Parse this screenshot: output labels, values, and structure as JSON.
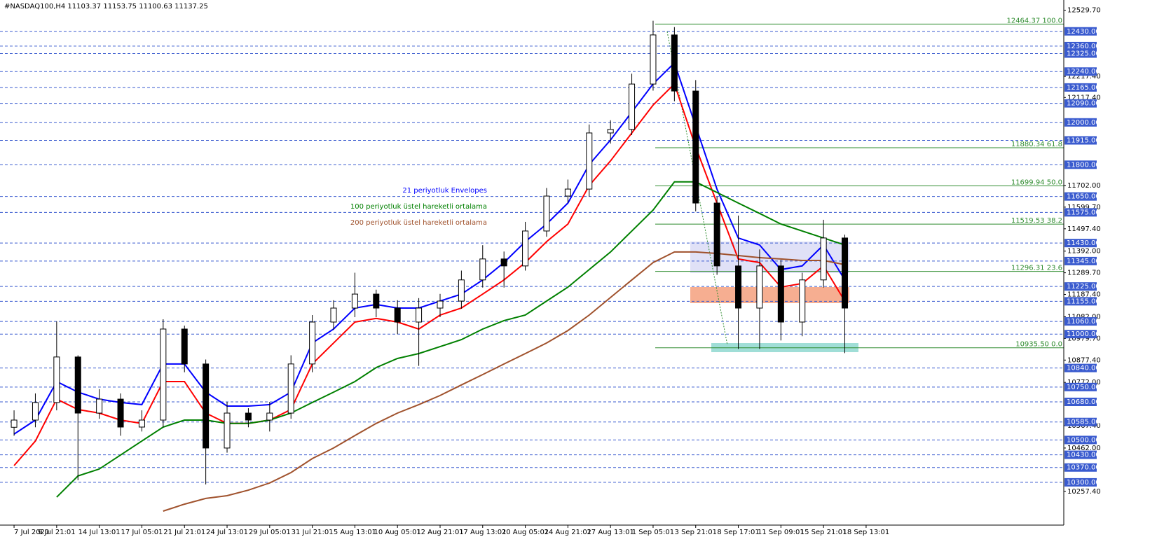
{
  "chart_data": {
    "type": "candlestick",
    "title": "#NASDAQ100,H4  11103.37 11153.75 11100.63 11137.25",
    "xlim": [
      -0.33,
      24.64
    ],
    "ylim": [
      10098,
      12578
    ],
    "xticks": [
      {
        "value": 0,
        "label": "7 Jul 2020"
      },
      {
        "value": 1,
        "label": "9 Jul 21:01"
      },
      {
        "value": 2,
        "label": "14 Jul 13:01"
      },
      {
        "value": 3,
        "label": "17 Jul 05:01"
      },
      {
        "value": 4,
        "label": "21 Jul 21:01"
      },
      {
        "value": 5,
        "label": "24 Jul 13:01"
      },
      {
        "value": 6,
        "label": "29 Jul 05:01"
      },
      {
        "value": 7,
        "label": "31 Jul 21:01"
      },
      {
        "value": 8,
        "label": "5 Aug 13:01"
      },
      {
        "value": 9,
        "label": "10 Aug 05:01"
      },
      {
        "value": 10,
        "label": "12 Aug 21:01"
      },
      {
        "value": 11,
        "label": "17 Aug 13:01"
      },
      {
        "value": 12,
        "label": "20 Aug 05:01"
      },
      {
        "value": 13,
        "label": "24 Aug 21:01"
      },
      {
        "value": 14,
        "label": "27 Aug 13:01"
      },
      {
        "value": 15,
        "label": "1 Sep 05:01"
      },
      {
        "value": 16,
        "label": "3 Sep 21:01"
      },
      {
        "value": 17,
        "label": "8 Sep 17:01"
      },
      {
        "value": 18,
        "label": "11 Sep 09:01"
      },
      {
        "value": 19,
        "label": "15 Sep 21:01"
      },
      {
        "value": 20,
        "label": "18 Sep 13:01"
      }
    ],
    "yticks": [
      {
        "value": 12529.7,
        "label": "12529.70"
      },
      {
        "value": 12217.4,
        "label": "12217.40"
      },
      {
        "value": 12117.4,
        "label": "12117.40"
      },
      {
        "value": 11702,
        "label": "11702.00"
      },
      {
        "value": 11599.7,
        "label": "11599.70"
      },
      {
        "value": 11497.4,
        "label": "11497.40"
      },
      {
        "value": 11392,
        "label": "11392.00"
      },
      {
        "value": 11289.7,
        "label": "11289.70"
      },
      {
        "value": 11187.4,
        "label": "11187.40"
      },
      {
        "value": 11082,
        "label": "11082.00"
      },
      {
        "value": 10979.7,
        "label": "10979.70"
      },
      {
        "value": 10877.4,
        "label": "10877.40"
      },
      {
        "value": 10772,
        "label": "10772.00"
      },
      {
        "value": 10567.4,
        "label": "10567.40"
      },
      {
        "value": 10462,
        "label": "10462.00"
      },
      {
        "value": 10257.4,
        "label": "10257.40"
      }
    ],
    "levels_color": "#3a5bcf",
    "levels": [
      {
        "value": 12430,
        "label": "12430.00"
      },
      {
        "value": 12360,
        "label": "12360.00"
      },
      {
        "value": 12325,
        "label": "12325.00"
      },
      {
        "value": 12240,
        "label": "12240.00"
      },
      {
        "value": 12165,
        "label": "12165.00"
      },
      {
        "value": 12090,
        "label": "12090.00"
      },
      {
        "value": 12000,
        "label": "12000.00"
      },
      {
        "value": 11915,
        "label": "11915.00"
      },
      {
        "value": 11800,
        "label": "11800.00"
      },
      {
        "value": 11650,
        "label": "11650.00"
      },
      {
        "value": 11575,
        "label": "11575.00"
      },
      {
        "value": 11430,
        "label": "11430.00"
      },
      {
        "value": 11345,
        "label": "11345.00"
      },
      {
        "value": 11225,
        "label": "11225.00"
      },
      {
        "value": 11155,
        "label": "11155.00"
      },
      {
        "value": 11060,
        "label": "11060.00"
      },
      {
        "value": 11000,
        "label": "11000.00"
      },
      {
        "value": 10840,
        "label": "10840.00"
      },
      {
        "value": 10750,
        "label": "10750.00"
      },
      {
        "value": 10680,
        "label": "10680.00"
      },
      {
        "value": 10585,
        "label": "10585.00"
      },
      {
        "value": 10500,
        "label": "10500.00"
      },
      {
        "value": 10430,
        "label": "10430.00"
      },
      {
        "value": 10370,
        "label": "10370.00"
      },
      {
        "value": 10300,
        "label": "10300.00"
      }
    ],
    "fib_color": "#2e8b2e",
    "fib_levels": [
      {
        "value": 12464.37,
        "label": "12464.37 100.0"
      },
      {
        "value": 11880.34,
        "label": "11880.34 61.8"
      },
      {
        "value": 11699.94,
        "label": "11699.94 50.0"
      },
      {
        "value": 11519.53,
        "label": "11519.53 38.2"
      },
      {
        "value": 11296.31,
        "label": "11296.31 23.6"
      },
      {
        "value": 10935.5,
        "label": "10935.50 0.0"
      }
    ],
    "candles": {
      "x": [
        0,
        0.5,
        1,
        1.5,
        2,
        2.5,
        3,
        3.5,
        4,
        4.5,
        5,
        5.5,
        6,
        6.5,
        7,
        7.5,
        8,
        8.5,
        9,
        9.5,
        10,
        10.5,
        11,
        11.5,
        12,
        12.5,
        13,
        13.5,
        14,
        14.5,
        15,
        15.5,
        16,
        16.5,
        17,
        17.5,
        18,
        18.5,
        19,
        19.5
      ],
      "open": [
        10560,
        10594,
        10677,
        10892,
        10627,
        10693,
        10561,
        10594,
        11024,
        10859,
        10462,
        10627,
        10594,
        10627,
        10859,
        11057,
        11123,
        11189,
        11123,
        11057,
        11123,
        11156,
        11256,
        11355,
        11322,
        11487,
        11652,
        11685,
        11950,
        11967,
        12181,
        12413,
        12148,
        11619,
        11322,
        11123,
        11322,
        11057,
        11256,
        11454
      ],
      "high": [
        10640,
        10720,
        11060,
        10900,
        10740,
        10720,
        10640,
        11070,
        11040,
        10880,
        10680,
        10650,
        10680,
        10900,
        11090,
        11160,
        11290,
        11210,
        11160,
        11170,
        11190,
        11300,
        11420,
        11390,
        11530,
        11690,
        11730,
        11990,
        12010,
        12230,
        12480,
        12450,
        12200,
        11650,
        11560,
        11400,
        11350,
        11290,
        11540,
        11470
      ],
      "low": [
        10520,
        10560,
        10640,
        10310,
        10600,
        10520,
        10540,
        10560,
        10820,
        10290,
        10440,
        10560,
        10540,
        10600,
        10820,
        11020,
        11080,
        11080,
        11000,
        10850,
        11080,
        11120,
        11220,
        11220,
        11300,
        11460,
        11620,
        11650,
        11900,
        11940,
        12150,
        12100,
        11580,
        11280,
        10930,
        10930,
        10970,
        10990,
        11220,
        10910
      ],
      "close": [
        10594,
        10677,
        10892,
        10627,
        10693,
        10561,
        10594,
        11024,
        10859,
        10462,
        10627,
        10594,
        10627,
        10859,
        11057,
        11123,
        11189,
        11123,
        11057,
        11123,
        11156,
        11256,
        11355,
        11322,
        11487,
        11652,
        11685,
        11950,
        11967,
        12181,
        12413,
        12148,
        11619,
        11322,
        11123,
        11322,
        11057,
        11256,
        11454,
        11123
      ],
      "color": "#000000"
    },
    "lines": [
      {
        "name": "21 periyotluk Envelopes",
        "color": "#0000ff",
        "values": [
          10528,
          10594,
          10776,
          10726,
          10693,
          10677,
          10667,
          10859,
          10859,
          10726,
          10660,
          10660,
          10667,
          10726,
          10958,
          11024,
          11123,
          11140,
          11123,
          11123,
          11156,
          11189,
          11256,
          11338,
          11437,
          11520,
          11619,
          11801,
          11917,
          12049,
          12182,
          12281,
          11983,
          11685,
          11454,
          11421,
          11305,
          11322,
          11421,
          11256
        ],
        "lower_color": "#ff0000",
        "lower_values": [
          10379,
          10495,
          10693,
          10644,
          10627,
          10594,
          10578,
          10776,
          10776,
          10627,
          10578,
          10578,
          10594,
          10644,
          10859,
          10958,
          11057,
          11074,
          11057,
          11024,
          11090,
          11123,
          11189,
          11256,
          11338,
          11437,
          11520,
          11702,
          11818,
          11950,
          12082,
          12182,
          11884,
          11619,
          11355,
          11338,
          11222,
          11239,
          11322,
          11156
        ]
      },
      {
        "name": "100 periyotluk üstel hareketli ortalama",
        "color": "#008000",
        "values": [
          null,
          null,
          10230,
          10330,
          10363,
          10429,
          10495,
          10561,
          10594,
          10594,
          10578,
          10578,
          10594,
          10627,
          10677,
          10726,
          10776,
          10842,
          10885,
          10908,
          10941,
          10974,
          11024,
          11064,
          11090,
          11156,
          11222,
          11305,
          11388,
          11487,
          11586,
          11719,
          11719,
          11669,
          11619,
          11570,
          11520,
          11487,
          11454,
          11421
        ]
      },
      {
        "name": "200 periyotluk üstel hareketli ortalama",
        "color": "#a0522d",
        "values": [
          null,
          null,
          null,
          null,
          null,
          null,
          null,
          10164,
          10197,
          10224,
          10237,
          10263,
          10297,
          10346,
          10412,
          10462,
          10521,
          10578,
          10627,
          10667,
          10710,
          10760,
          10809,
          10859,
          10908,
          10958,
          11017,
          11090,
          11173,
          11256,
          11338,
          11388,
          11388,
          11381,
          11371,
          11361,
          11355,
          11348,
          11348,
          11328
        ]
      }
    ]
  }
}
